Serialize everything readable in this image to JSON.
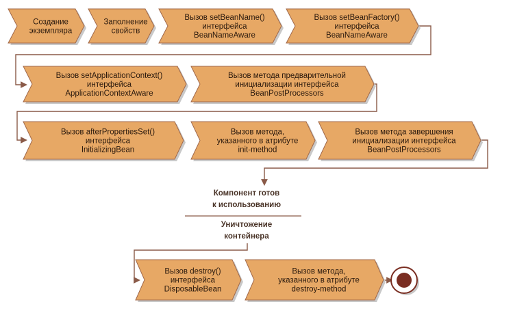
{
  "diagram": {
    "steps_row1": [
      {
        "lines": [
          "Создание",
          "экземпляра"
        ]
      },
      {
        "lines": [
          "Заполнение",
          "свойств"
        ]
      },
      {
        "lines": [
          "Вызов setBeanName()",
          "интерфейса",
          "BeanNameAware"
        ]
      },
      {
        "lines": [
          "Вызов setBeanFactory()",
          "интерфейса",
          "BeanNameAware"
        ]
      }
    ],
    "steps_row2": [
      {
        "lines": [
          "Вызов setApplicationContext()",
          "интерфейса",
          "ApplicationContextAware"
        ]
      },
      {
        "lines": [
          "Вызов метода предварительной",
          "инициализации интерфейса",
          "BeanPostProcessors"
        ]
      }
    ],
    "steps_row3": [
      {
        "lines": [
          "Вызов afterPropertiesSet()",
          "интерфейса",
          "InitializingBean"
        ]
      },
      {
        "lines": [
          "Вызов метода,",
          "указанного в атрибуте",
          "init-method"
        ]
      },
      {
        "lines": [
          "Вызов метода завершения",
          "инициализации интерфейса",
          "BeanPostProcessors"
        ]
      }
    ],
    "ready_state": {
      "lines": [
        "Компонент готов",
        "к использованию"
      ]
    },
    "destroy_state": {
      "lines": [
        "Уничтожение",
        "контейнера"
      ]
    },
    "steps_row4": [
      {
        "lines": [
          "Вызов destroy()",
          "интерфейса",
          "DisposableBean"
        ]
      },
      {
        "lines": [
          "Вызов метода,",
          "указанного в атрибуте",
          "destroy-method"
        ]
      }
    ],
    "colors": {
      "chevron_fill": "#e7a865",
      "chevron_stroke": "#a0684a",
      "shadow": "#c9c9c9",
      "connector": "#8a5a48",
      "state_text": "#4a3428",
      "end_outer": "#ffffff",
      "end_inner": "#7a2e22"
    }
  }
}
